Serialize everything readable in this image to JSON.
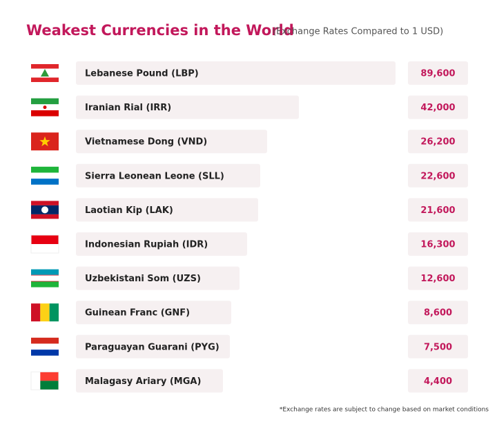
{
  "header": {
    "title": "Weakest Currencies in the World",
    "subtitle": "(Exchange Rates Compared to 1 USD)"
  },
  "rows": [
    {
      "currency": "Lebanese Pound (LBP)",
      "rate": "89,600"
    },
    {
      "currency": "Iranian Rial (IRR)",
      "rate": "42,000"
    },
    {
      "currency": "Vietnamese Dong (VND)",
      "rate": "26,200"
    },
    {
      "currency": "Sierra Leonean Leone (SLL)",
      "rate": "22,600"
    },
    {
      "currency": "Laotian Kip (LAK)",
      "rate": "21,600"
    },
    {
      "currency": "Indonesian Rupiah (IDR)",
      "rate": "16,300"
    },
    {
      "currency": "Uzbekistani Som (UZS)",
      "rate": "12,600"
    },
    {
      "currency": "Guinean Franc (GNF)",
      "rate": "8,600"
    },
    {
      "currency": "Paraguayan Guarani (PYG)",
      "rate": "7,500"
    },
    {
      "currency": "Malagasy Ariary (MGA)",
      "rate": "4,400"
    }
  ],
  "footnote": "*Exchange rates are subject to change based on market conditions"
}
